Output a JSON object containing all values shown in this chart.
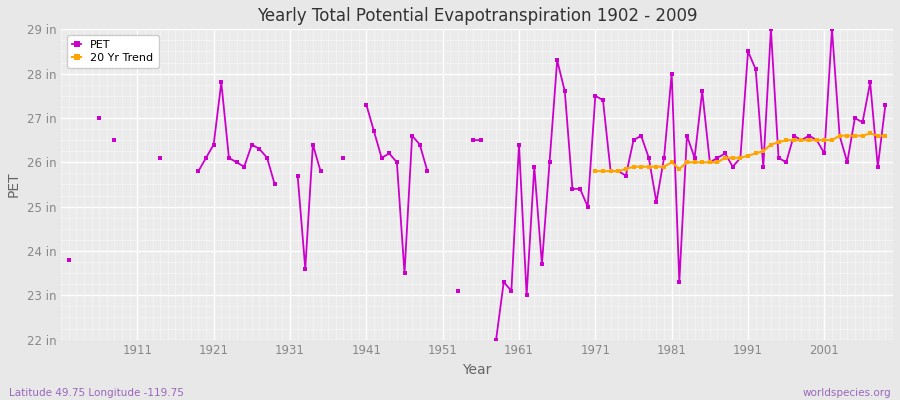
{
  "title": "Yearly Total Potential Evapotranspiration 1902 - 2009",
  "xlabel": "Year",
  "ylabel": "PET",
  "subtitle_left": "Latitude 49.75 Longitude -119.75",
  "subtitle_right": "worldspecies.org",
  "ylim": [
    22,
    29
  ],
  "yticks": [
    22,
    23,
    24,
    25,
    26,
    27,
    28,
    29
  ],
  "ytick_labels": [
    "22 in",
    "23 in",
    "24 in",
    "25 in",
    "26 in",
    "27 in",
    "28 in",
    "29 in"
  ],
  "xticks": [
    1911,
    1921,
    1931,
    1941,
    1951,
    1961,
    1971,
    1981,
    1991,
    2001
  ],
  "pet_color": "#CC00CC",
  "trend_color": "#FFA500",
  "bg_color": "#E8E8E8",
  "plot_bg_color": "#EBEBEB",
  "years": [
    1902,
    1906,
    1908,
    1914,
    1919,
    1920,
    1921,
    1922,
    1923,
    1924,
    1925,
    1926,
    1927,
    1928,
    1929,
    1932,
    1933,
    1934,
    1935,
    1938,
    1941,
    1942,
    1943,
    1944,
    1945,
    1946,
    1947,
    1948,
    1949,
    1953,
    1955,
    1956,
    1958,
    1959,
    1960,
    1961,
    1962,
    1963,
    1964,
    1965,
    1966,
    1967,
    1968,
    1969,
    1970,
    1971,
    1972,
    1973,
    1974,
    1975,
    1976,
    1977,
    1978,
    1979,
    1980,
    1981,
    1982,
    1983,
    1984,
    1985,
    1986,
    1987,
    1988,
    1989,
    1990,
    1991,
    1992,
    1993,
    1994,
    1995,
    1996,
    1997,
    1998,
    1999,
    2000,
    2001,
    2002,
    2003,
    2004,
    2005,
    2006,
    2007,
    2008,
    2009
  ],
  "pet_values": [
    23.8,
    27.0,
    26.5,
    26.1,
    25.8,
    26.1,
    26.4,
    27.8,
    26.1,
    26.0,
    25.9,
    26.4,
    26.3,
    26.1,
    25.5,
    25.7,
    23.6,
    26.4,
    25.8,
    26.1,
    27.3,
    26.7,
    26.1,
    26.2,
    26.0,
    23.5,
    26.6,
    26.4,
    25.8,
    23.1,
    26.5,
    26.5,
    22.0,
    23.3,
    23.1,
    26.4,
    23.0,
    25.9,
    23.7,
    26.0,
    28.3,
    27.6,
    25.4,
    25.4,
    25.0,
    27.5,
    27.4,
    25.8,
    25.8,
    25.7,
    26.5,
    26.6,
    26.1,
    25.1,
    26.1,
    28.0,
    23.3,
    26.6,
    26.1,
    27.6,
    26.0,
    26.1,
    26.2,
    25.9,
    26.1,
    28.5,
    28.1,
    25.9,
    29.0,
    26.1,
    26.0,
    26.6,
    26.5,
    26.6,
    26.5,
    26.2,
    29.0,
    26.6,
    26.0,
    27.0,
    26.9,
    27.8,
    25.9,
    27.3
  ],
  "trend_years": [
    1971,
    1972,
    1973,
    1974,
    1975,
    1976,
    1977,
    1978,
    1979,
    1980,
    1981,
    1982,
    1983,
    1984,
    1985,
    1986,
    1987,
    1988,
    1989,
    1990,
    1991,
    1992,
    1993,
    1994,
    1995,
    1996,
    1997,
    1998,
    1999,
    2000,
    2001,
    2002,
    2003,
    2004,
    2005,
    2006,
    2007,
    2008,
    2009
  ],
  "trend_values": [
    25.8,
    25.8,
    25.8,
    25.8,
    25.85,
    25.9,
    25.9,
    25.9,
    25.9,
    25.9,
    26.0,
    25.85,
    26.0,
    26.0,
    26.0,
    26.0,
    26.0,
    26.1,
    26.1,
    26.1,
    26.15,
    26.2,
    26.25,
    26.4,
    26.45,
    26.5,
    26.5,
    26.5,
    26.5,
    26.5,
    26.5,
    26.5,
    26.6,
    26.6,
    26.6,
    26.6,
    26.65,
    26.6,
    26.6
  ]
}
